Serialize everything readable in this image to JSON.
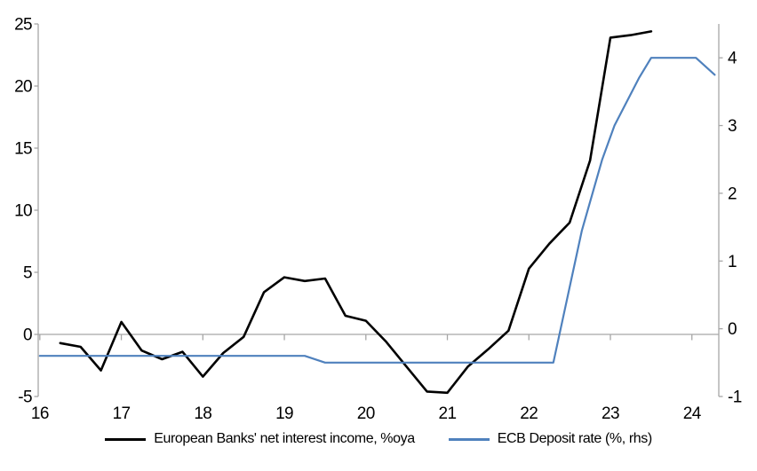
{
  "chart_data": {
    "type": "line",
    "title": "",
    "background": "#ffffff",
    "axis_color": "#a6a6a6",
    "text_color": "#000000",
    "grid": "zero-line-only",
    "legend_position": "bottom",
    "x_axis": {
      "range": [
        15.98,
        24.33
      ],
      "ticks": [
        16,
        17,
        18,
        19,
        20,
        21,
        22,
        23,
        24
      ],
      "labels": [
        "16",
        "17",
        "18",
        "19",
        "20",
        "21",
        "22",
        "23",
        "24"
      ]
    },
    "left_axis": {
      "range": [
        -5,
        25
      ],
      "ticks": [
        25,
        20,
        15,
        10,
        5,
        0,
        -5
      ],
      "labels": [
        "25",
        "20",
        "15",
        "10",
        "5",
        "0",
        "-5"
      ]
    },
    "right_axis": {
      "range": [
        -1,
        4.5
      ],
      "ticks": [
        4,
        3,
        2,
        1,
        0,
        -1
      ],
      "labels": [
        "4",
        "3",
        "2",
        "1",
        "0",
        "-1"
      ]
    },
    "zero_line_value": 0,
    "series": [
      {
        "name": "European Banks' net interest income, %oya",
        "axis": "left",
        "color": "#000000",
        "line_width": 2.6,
        "x": [
          16.25,
          16.5,
          16.75,
          17,
          17.25,
          17.5,
          17.75,
          18,
          18.25,
          18.5,
          18.75,
          19,
          19.25,
          19.5,
          19.75,
          20,
          20.25,
          20.5,
          20.75,
          21,
          21.25,
          21.5,
          21.75,
          22,
          22.25,
          22.5,
          22.75,
          23,
          23.25,
          23.5
        ],
        "values": [
          -0.7,
          -1.0,
          -2.9,
          1.0,
          -1.3,
          -2.0,
          -1.4,
          -3.4,
          -1.5,
          -0.2,
          3.4,
          4.6,
          4.3,
          4.5,
          1.5,
          1.1,
          -0.6,
          -2.6,
          -4.6,
          -4.7,
          -2.6,
          -1.2,
          0.3,
          5.3,
          7.3,
          9.0,
          14.0,
          23.9,
          24.1,
          24.4
        ]
      },
      {
        "name": "ECB Deposit rate (%, rhs)",
        "axis": "right",
        "color": "#4f81bd",
        "line_width": 2.2,
        "x": [
          16.0,
          19.25,
          19.5,
          22.3,
          22.65,
          22.9,
          23.05,
          23.35,
          23.5,
          24.05,
          24.28
        ],
        "values": [
          -0.4,
          -0.4,
          -0.5,
          -0.5,
          1.45,
          2.5,
          3.0,
          3.7,
          4.0,
          4.0,
          3.75
        ]
      }
    ]
  }
}
